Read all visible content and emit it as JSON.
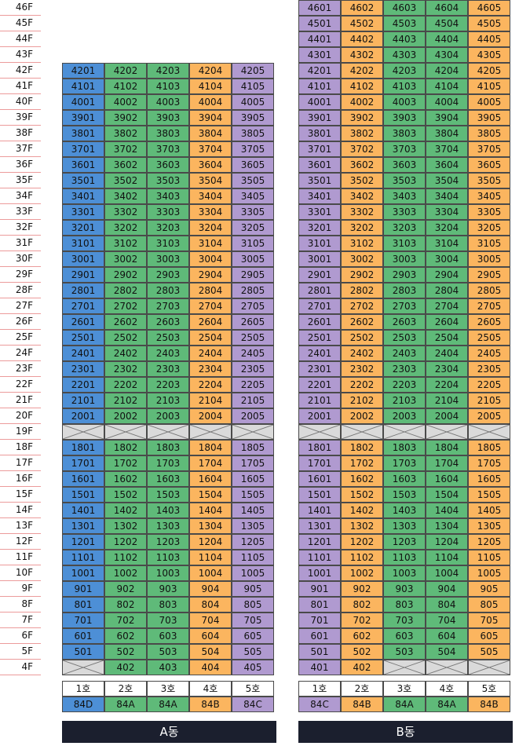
{
  "floors": [
    "46F",
    "45F",
    "44F",
    "43F",
    "42F",
    "41F",
    "40F",
    "39F",
    "38F",
    "37F",
    "36F",
    "35F",
    "34F",
    "33F",
    "32F",
    "31F",
    "30F",
    "29F",
    "28F",
    "27F",
    "26F",
    "25F",
    "24F",
    "23F",
    "22F",
    "21F",
    "20F",
    "19F",
    "18F",
    "17F",
    "16F",
    "15F",
    "14F",
    "13F",
    "12F",
    "11F",
    "10F",
    "9F",
    "8F",
    "7F",
    "6F",
    "5F",
    "4F"
  ],
  "skip_floor": 19,
  "colors": {
    "84A": "#5fba79",
    "84B": "#fbb55f",
    "84C": "#b09ad0",
    "84D": "#4d8fd6",
    "skip": "#dadada"
  },
  "buildings": [
    {
      "name": "A동",
      "max_floor": 42,
      "unit_labels": [
        "1호",
        "2호",
        "3호",
        "4호",
        "5호"
      ],
      "types": [
        "84D",
        "84A",
        "84A",
        "84B",
        "84C"
      ],
      "missing_4f_units": [
        1
      ]
    },
    {
      "name": "B동",
      "max_floor": 46,
      "unit_labels": [
        "1호",
        "2호",
        "3호",
        "4호",
        "5호"
      ],
      "types": [
        "84C",
        "84B",
        "84A",
        "84A",
        "84B"
      ],
      "missing_4f_units": [
        3,
        4,
        5
      ]
    }
  ]
}
